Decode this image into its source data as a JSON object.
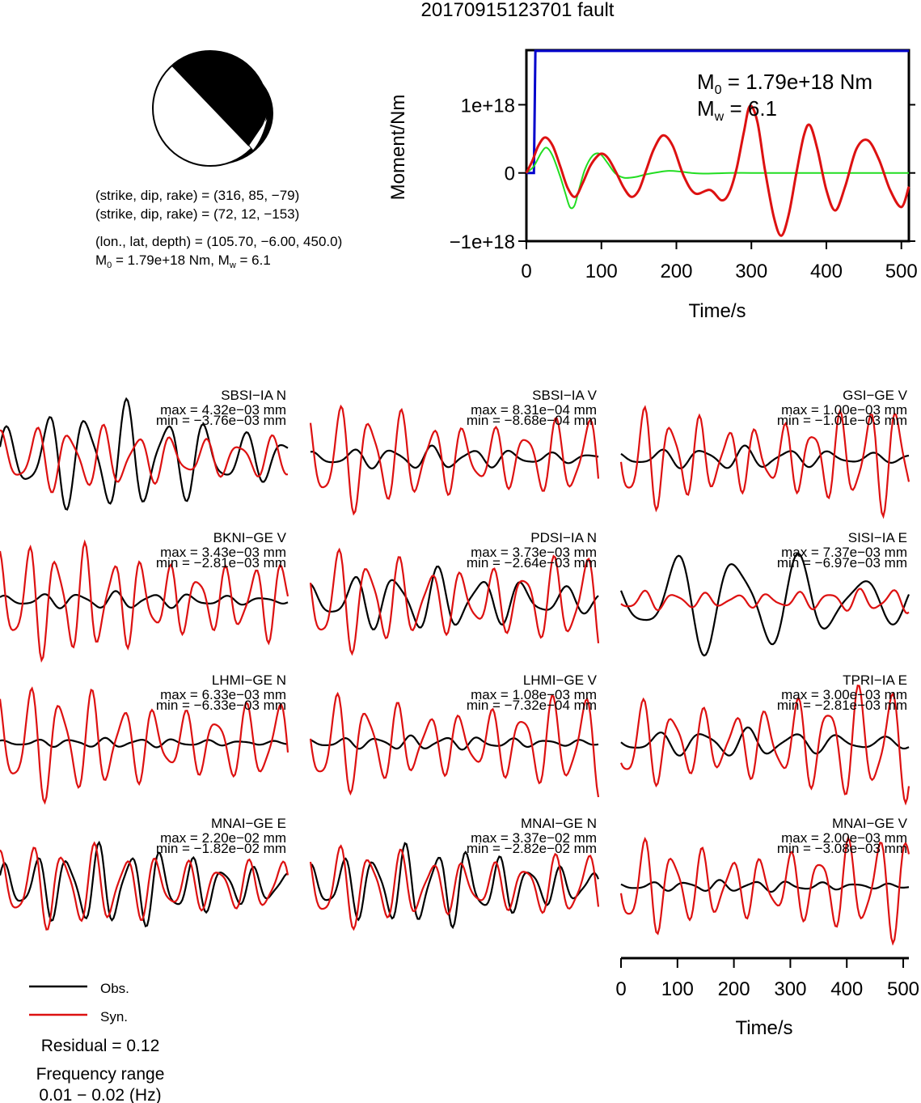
{
  "title": "20170915123701 fault",
  "beachball": {
    "nodal_plane_1": "(strike, dip, rake) = (316, 85, −79)",
    "nodal_plane_2": "(strike, dip, rake) = (72, 12, −153)",
    "location": "(lon., lat, depth) = (105.70, −6.00, 450.0)",
    "moment_line_prefix": "M",
    "moment_line_sub0": "0",
    "moment_line_mid": " = 1.79e+18 Nm, M",
    "moment_line_subw": "w",
    "moment_line_end": " = 6.1"
  },
  "moment_panel": {
    "m0_prefix": "M",
    "m0_sub": "0",
    "m0_value": " = 1.79e+18 Nm",
    "mw_prefix": "M",
    "mw_sub": "w",
    "mw_value": " = 6.1",
    "ylabel": "Moment/Nm",
    "xlabel": "Time/s"
  },
  "legend": {
    "obs": "Obs.",
    "syn": "Syn.",
    "residual": "Residual = 0.12",
    "freq_title": "Frequency range",
    "freq_value": "0.01 − 0.02 (Hz)"
  },
  "waveform_xlabel": "Time/s",
  "colors": {
    "observed": "#000000",
    "synthetic": "#dd1111",
    "cumulative_moment": "#0000cc",
    "moment_rate_green": "#22dd22",
    "moment_rate_red": "#dd1111"
  },
  "chart_data": [
    {
      "type": "line",
      "id": "moment-function",
      "xlim": [
        0,
        510
      ],
      "ylim": [
        -1e+18,
        1.8e+18
      ],
      "x_ticks": [
        "0",
        "100",
        "200",
        "300",
        "400",
        "500"
      ],
      "y_ticks": [
        "−1e+18",
        "0",
        "1e+18"
      ],
      "y_tick_values": [
        -1e+18,
        0,
        1e+18
      ],
      "x_tick_values": [
        0,
        100,
        200,
        300,
        400,
        500
      ],
      "series": [
        {
          "color": "blue",
          "x": [
            0,
            6,
            10,
            12,
            510
          ],
          "y": [
            0,
            0,
            0,
            1.79e+18,
            1.79e+18
          ]
        },
        {
          "color": "green",
          "x": [
            0,
            10,
            20,
            27,
            35,
            45,
            52,
            58,
            64,
            70,
            78,
            88,
            98,
            108,
            118,
            130,
            145,
            160,
            175,
            190,
            205,
            220,
            240,
            270,
            300,
            350,
            400,
            450,
            510
          ],
          "y": [
            0,
            1e+17,
            3e+17,
            3.7e+17,
            2.5e+17,
            -5e+16,
            -3e+17,
            -5e+17,
            -4.8e+17,
            -2.5e+17,
            5e+16,
            2.5e+17,
            2.8e+17,
            1.5e+17,
            0.0,
            -7e+16,
            -6e+16,
            -2e+16,
            1e+16,
            3e+16,
            2e+16,
            0.0,
            -1e+16,
            0.0,
            0.0,
            0.0,
            0.0,
            0.0,
            0.0
          ]
        },
        {
          "color": "red",
          "x": [
            0,
            8,
            16,
            25,
            35,
            45,
            55,
            65,
            75,
            85,
            95,
            102,
            110,
            120,
            130,
            140,
            150,
            160,
            170,
            182,
            195,
            210,
            225,
            245,
            260,
            270,
            280,
            290,
            298,
            308,
            318,
            330,
            340,
            350,
            360,
            370,
            378,
            388,
            400,
            412,
            425,
            440,
            455,
            470,
            485,
            500,
            510
          ],
          "y": [
            0,
            1.8e+17,
            4e+17,
            5.2e+17,
            4e+17,
            1e+17,
            -2.2e+17,
            -3.5e+17,
            -1.5e+17,
            1e+17,
            2.5e+17,
            2.8e+17,
            2e+17,
            0.0,
            -2.2e+17,
            -3.5e+17,
            -2.5e+17,
            5e+16,
            3.5e+17,
            5.5e+17,
            4e+17,
            -5e+16,
            -3e+17,
            -2.5e+17,
            -4e+17,
            -3e+17,
            5e+16,
            6e+17,
            9.8e+17,
            7.5e+17,
            5e+16,
            -6.5e+17,
            -9.2e+17,
            -6e+17,
            0.0,
            5.5e+17,
            7e+17,
            3.5e+17,
            -2.5e+17,
            -5.5e+17,
            -2e+17,
            3.5e+17,
            4.8e+17,
            2e+17,
            -2.5e+17,
            -5e+17,
            -2e+17
          ]
        }
      ]
    },
    {
      "type": "line",
      "id": "waveforms",
      "x_ticks": [
        "0",
        "100",
        "200",
        "300",
        "400",
        "500"
      ],
      "x_tick_values": [
        0,
        100,
        200,
        300,
        400,
        500
      ],
      "xlim": [
        0,
        510
      ],
      "stations": [
        {
          "name": "SBSI−IA N",
          "max": "max = 4.32e−03 mm",
          "min": "min = −3.76e−03 mm",
          "obs_amp": 0.95,
          "syn_amp": 0.55,
          "obs_period": 70,
          "syn_period": 60,
          "phase": 0.3
        },
        {
          "name": "SBSI−IA V",
          "max": "max = 8.31e−04 mm",
          "min": "min = −8.68e−04 mm",
          "obs_amp": 0.2,
          "syn_amp": 0.9,
          "obs_period": 70,
          "syn_period": 55,
          "phase": 1.1
        },
        {
          "name": "GSI−GE V",
          "max": "max = 1.00e−03 mm",
          "min": "min = −1.01e−03 mm",
          "obs_amp": 0.2,
          "syn_amp": 0.95,
          "obs_period": 75,
          "syn_period": 50,
          "phase": 2.0
        },
        {
          "name": "BKNI−GE V",
          "max": "max = 3.43e−03 mm",
          "min": "min = −2.81e−03 mm",
          "obs_amp": 0.15,
          "syn_amp": 0.95,
          "obs_period": 65,
          "syn_period": 50,
          "phase": 0.6
        },
        {
          "name": "PDSI−IA N",
          "max": "max = 3.73e−03 mm",
          "min": "min = −2.64e−03 mm",
          "obs_amp": 0.55,
          "syn_amp": 0.9,
          "obs_period": 75,
          "syn_period": 55,
          "phase": 1.5
        },
        {
          "name": "SISI−IA E",
          "max": "max = 7.37e−03 mm",
          "min": "min = −6.97e−03 mm",
          "obs_amp": 0.95,
          "syn_amp": 0.2,
          "obs_period": 110,
          "syn_period": 55,
          "phase": 2.4
        },
        {
          "name": "LHMI−GE N",
          "max": "max = 6.33e−03 mm",
          "min": "min = −6.33e−03 mm",
          "obs_amp": 0.08,
          "syn_amp": 0.95,
          "obs_period": 60,
          "syn_period": 55,
          "phase": 0.9
        },
        {
          "name": "LHMI−GE V",
          "max": "max = 1.08e−03 mm",
          "min": "min = −7.32e−04 mm",
          "obs_amp": 0.12,
          "syn_amp": 0.9,
          "obs_period": 60,
          "syn_period": 55,
          "phase": 1.8
        },
        {
          "name": "TPRI−IA E",
          "max": "max = 3.00e−03 mm",
          "min": "min = −2.81e−03 mm",
          "obs_amp": 0.25,
          "syn_amp": 0.95,
          "obs_period": 80,
          "syn_period": 55,
          "phase": 2.7
        },
        {
          "name": "MNAI−GE E",
          "max": "max = 2.20e−02 mm",
          "min": "min = −1.82e−02 mm",
          "obs_amp": 0.7,
          "syn_amp": 0.7,
          "obs_period": 55,
          "syn_period": 55,
          "phase": 0.4
        },
        {
          "name": "MNAI−GE N",
          "max": "max = 3.37e−02 mm",
          "min": "min = −2.82e−02 mm",
          "obs_amp": 0.7,
          "syn_amp": 0.7,
          "obs_period": 55,
          "syn_period": 55,
          "phase": 1.2
        },
        {
          "name": "MNAI−GE V",
          "max": "max = 2.00e−03 mm",
          "min": "min = −3.08e−03 mm",
          "obs_amp": 0.1,
          "syn_amp": 0.9,
          "obs_period": 60,
          "syn_period": 52,
          "phase": 2.1
        }
      ]
    }
  ]
}
